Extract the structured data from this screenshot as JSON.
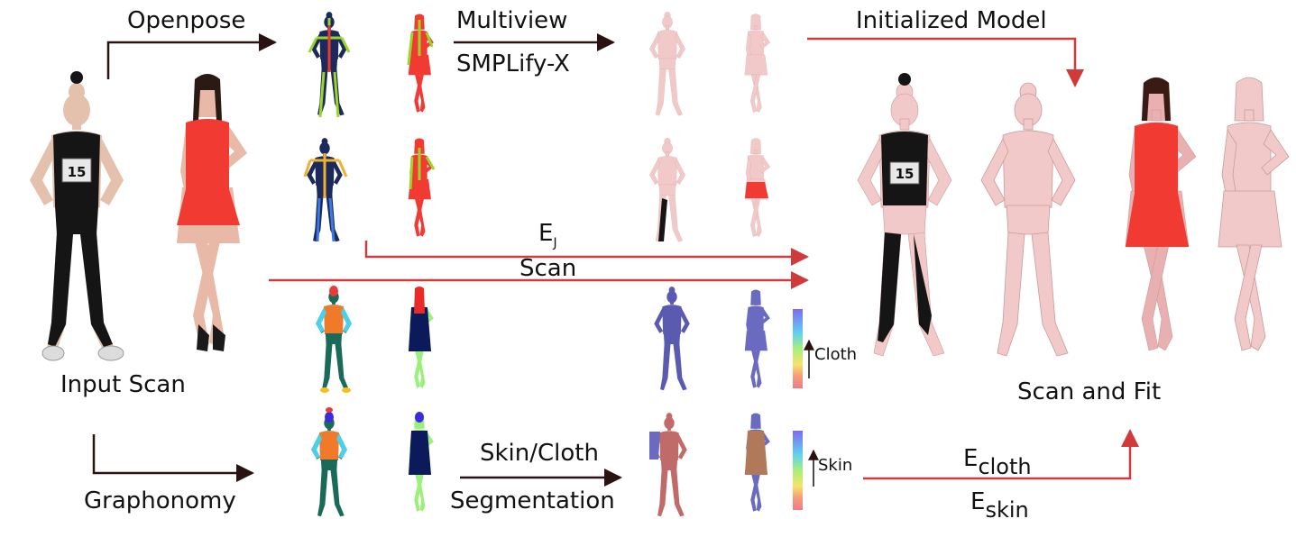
{
  "labels": {
    "input_scan": "Input Scan",
    "openpose": "Openpose",
    "graphonomy": "Graphonomy",
    "multiview": "Multiview",
    "smplify": "SMPLify-X",
    "initialized_model": "Initialized Model",
    "scan_and_fit": "Scan and Fit",
    "skin_cloth": "Skin/Cloth",
    "segmentation": "Segmentation",
    "cloth_scale": "Cloth",
    "skin_scale": "Skin"
  },
  "energy_terms": {
    "joint": {
      "symbol": "E",
      "subscript": "J"
    },
    "scan": "Scan",
    "cloth": {
      "symbol": "E",
      "subscript": "cloth"
    },
    "skin": {
      "symbol": "E",
      "subscript": "skin"
    }
  },
  "jersey_number": "15",
  "colors": {
    "arrow_dark": "#2a1212",
    "arrow_red": "#d03a3a",
    "model_pink": "#f2c9c9",
    "dress_red": "#f03a32",
    "outfit_black": "#151515",
    "colormap": [
      "#7d6bf2",
      "#5fd1f0",
      "#a6f07a",
      "#f6e36a",
      "#f59a7a",
      "#f07a8a"
    ]
  }
}
